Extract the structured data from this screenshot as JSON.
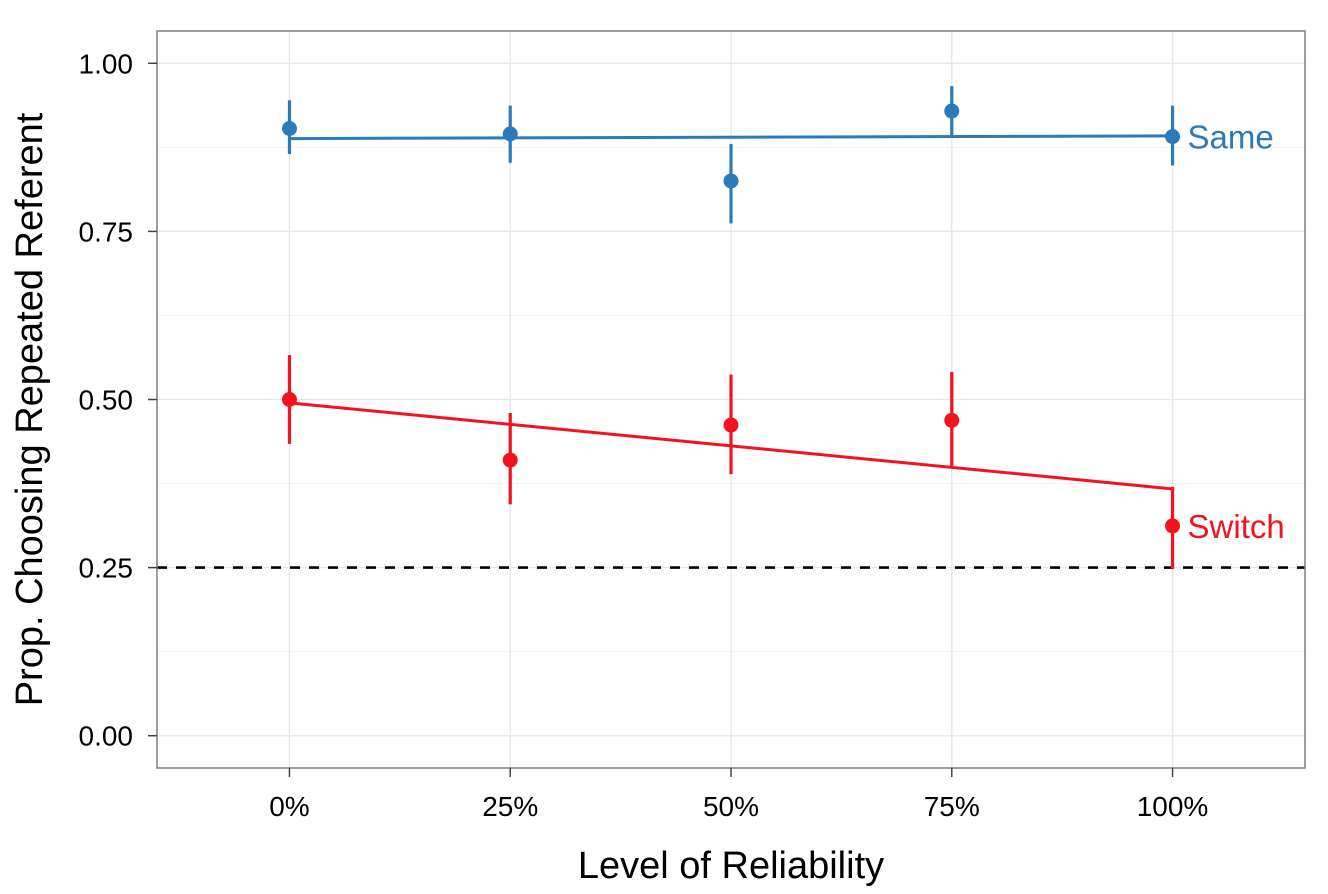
{
  "chart_data": {
    "type": "scatter",
    "xlabel": "Level of Reliability",
    "ylabel": "Prop. Choosing Repeated Referent",
    "x_ticks": [
      {
        "value": 0,
        "label": "0%"
      },
      {
        "value": 25,
        "label": "25%"
      },
      {
        "value": 50,
        "label": "50%"
      },
      {
        "value": 75,
        "label": "75%"
      },
      {
        "value": 100,
        "label": "100%"
      }
    ],
    "y_ticks": [
      {
        "value": 0,
        "label": "0.00"
      },
      {
        "value": 0.25,
        "label": "0.25"
      },
      {
        "value": 0.5,
        "label": "0.50"
      },
      {
        "value": 0.75,
        "label": "0.75"
      },
      {
        "value": 1.0,
        "label": "1.00"
      }
    ],
    "xlim": [
      -15,
      115
    ],
    "ylim": [
      -0.048,
      1.048
    ],
    "grid": true,
    "reference_line": {
      "y": 0.25,
      "style": "dashed",
      "color": "#000000"
    },
    "series": [
      {
        "name": "Same",
        "color": "#2b7bba",
        "points": [
          {
            "x": 0,
            "y": 0.903,
            "lo": 0.865,
            "hi": 0.945
          },
          {
            "x": 25,
            "y": 0.895,
            "lo": 0.852,
            "hi": 0.937
          },
          {
            "x": 50,
            "y": 0.825,
            "lo": 0.762,
            "hi": 0.88
          },
          {
            "x": 75,
            "y": 0.929,
            "lo": 0.892,
            "hi": 0.966
          },
          {
            "x": 100,
            "y": 0.891,
            "lo": 0.848,
            "hi": 0.937
          }
        ],
        "fit": [
          {
            "x": 0,
            "y": 0.888
          },
          {
            "x": 100,
            "y": 0.892
          }
        ]
      },
      {
        "name": "Switch",
        "color": "#f2131f",
        "points": [
          {
            "x": 0,
            "y": 0.5,
            "lo": 0.434,
            "hi": 0.566
          },
          {
            "x": 25,
            "y": 0.41,
            "lo": 0.344,
            "hi": 0.48
          },
          {
            "x": 50,
            "y": 0.462,
            "lo": 0.389,
            "hi": 0.537
          },
          {
            "x": 75,
            "y": 0.469,
            "lo": 0.4,
            "hi": 0.541
          },
          {
            "x": 100,
            "y": 0.312,
            "lo": 0.248,
            "hi": 0.37
          }
        ],
        "fit": [
          {
            "x": 0,
            "y": 0.495
          },
          {
            "x": 100,
            "y": 0.367
          }
        ]
      }
    ]
  }
}
